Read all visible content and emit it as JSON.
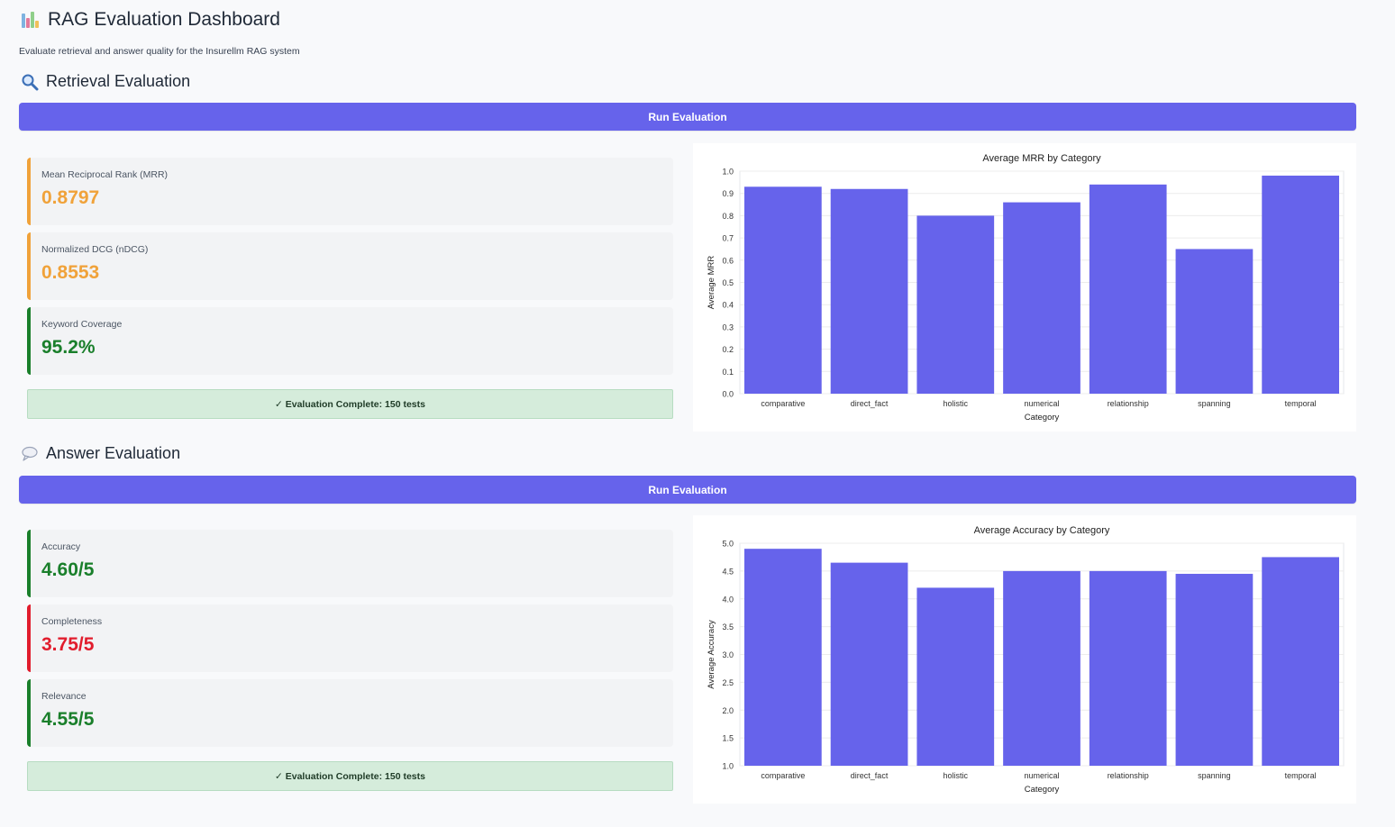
{
  "header": {
    "title": "RAG Evaluation Dashboard",
    "subtitle": "Evaluate retrieval and answer quality for the Insurellm RAG system"
  },
  "colors": {
    "accent": "#6663eb",
    "bar": "#6663eb",
    "warning": "#f0a23a",
    "good": "#1a7f2b",
    "bad": "#e11d2d"
  },
  "retrieval": {
    "title": "Retrieval Evaluation",
    "icon": "magnifier-icon",
    "button_label": "Run Evaluation",
    "metrics": [
      {
        "label": "Mean Reciprocal Rank (MRR)",
        "value": "0.8797",
        "status": "warning"
      },
      {
        "label": "Normalized DCG (nDCG)",
        "value": "0.8553",
        "status": "warning"
      },
      {
        "label": "Keyword Coverage",
        "value": "95.2%",
        "status": "good"
      }
    ],
    "status_text": "✓ Evaluation Complete: 150 tests"
  },
  "answer": {
    "title": "Answer Evaluation",
    "icon": "speech-bubble-icon",
    "button_label": "Run Evaluation",
    "metrics": [
      {
        "label": "Accuracy",
        "value": "4.60/5",
        "status": "good"
      },
      {
        "label": "Completeness",
        "value": "3.75/5",
        "status": "bad"
      },
      {
        "label": "Relevance",
        "value": "4.55/5",
        "status": "good"
      }
    ],
    "status_text": "✓ Evaluation Complete: 150 tests"
  },
  "chart_data": [
    {
      "type": "bar",
      "title": "Average MRR by Category",
      "xlabel": "Category",
      "ylabel": "Average MRR",
      "categories": [
        "comparative",
        "direct_fact",
        "holistic",
        "numerical",
        "relationship",
        "spanning",
        "temporal"
      ],
      "values": [
        0.93,
        0.92,
        0.8,
        0.86,
        0.94,
        0.65,
        0.98
      ],
      "ylim": [
        0,
        1.0
      ],
      "yticks": [
        "0.0",
        "0.1",
        "0.2",
        "0.3",
        "0.4",
        "0.5",
        "0.6",
        "0.7",
        "0.8",
        "0.9",
        "1.0"
      ],
      "grid": true,
      "legend": "none"
    },
    {
      "type": "bar",
      "title": "Average Accuracy by Category",
      "xlabel": "Category",
      "ylabel": "Average Accuracy",
      "categories": [
        "comparative",
        "direct_fact",
        "holistic",
        "numerical",
        "relationship",
        "spanning",
        "temporal"
      ],
      "values": [
        4.9,
        4.65,
        4.2,
        4.5,
        4.5,
        4.45,
        4.75
      ],
      "ylim": [
        1.0,
        5.0
      ],
      "yticks": [
        "1.0",
        "1.5",
        "2.0",
        "2.5",
        "3.0",
        "3.5",
        "4.0",
        "4.5",
        "5.0"
      ],
      "grid": true,
      "legend": "none"
    }
  ]
}
